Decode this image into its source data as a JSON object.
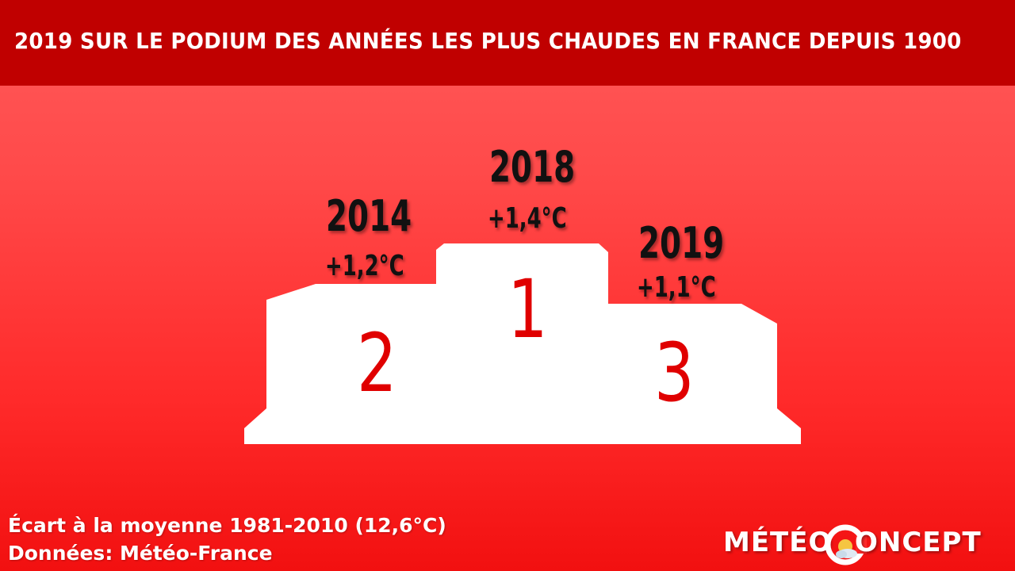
{
  "header": {
    "title": "2019 SUR LE PODIUM DES ANNÉES LES PLUS CHAUDES EN FRANCE DEPUIS 1900"
  },
  "podium": {
    "first": {
      "rank": "1",
      "year": "2018",
      "anomaly": "+1,4°C"
    },
    "second": {
      "rank": "2",
      "year": "2014",
      "anomaly": "+1,2°C"
    },
    "third": {
      "rank": "3",
      "year": "2019",
      "anomaly": "+1,1°C"
    }
  },
  "footer": {
    "line1": "Écart à la moyenne 1981-2010 (12,6°C)",
    "line2": "Données: Météo-France"
  },
  "logo": {
    "left_text": "MÉTÉO",
    "right_text": "ONCEPT"
  },
  "colors": {
    "header_bg": "#c00000",
    "background": "#ff4a4a",
    "rank_text": "#e00000",
    "podium": "#ffffff"
  }
}
